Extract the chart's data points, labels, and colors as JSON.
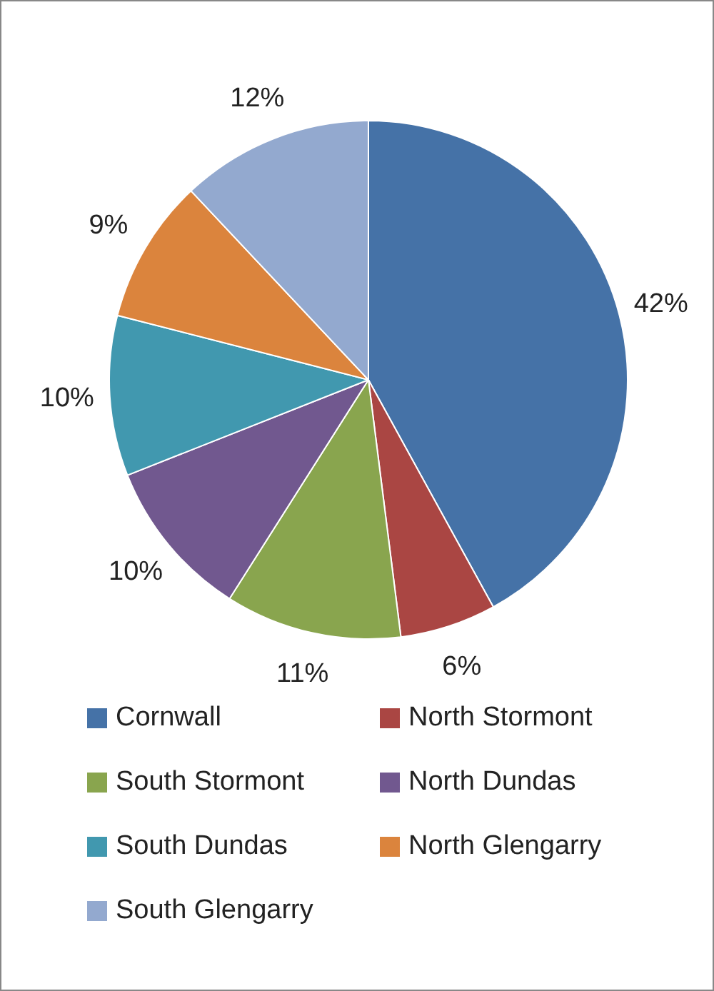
{
  "chart_data": {
    "type": "pie",
    "categories": [
      "Cornwall",
      "North Stormont",
      "South Stormont",
      "North Dundas",
      "South Dundas",
      "North Glengarry",
      "South Glengarry"
    ],
    "values": [
      42,
      6,
      11,
      10,
      10,
      9,
      12
    ],
    "colors": [
      "#4572a7",
      "#aa4643",
      "#89a54e",
      "#71588f",
      "#4198af",
      "#db843d",
      "#93a9cf"
    ],
    "value_labels": [
      "42%",
      "6%",
      "11%",
      "10%",
      "10%",
      "9%",
      "12%"
    ],
    "legend": "bottom"
  }
}
